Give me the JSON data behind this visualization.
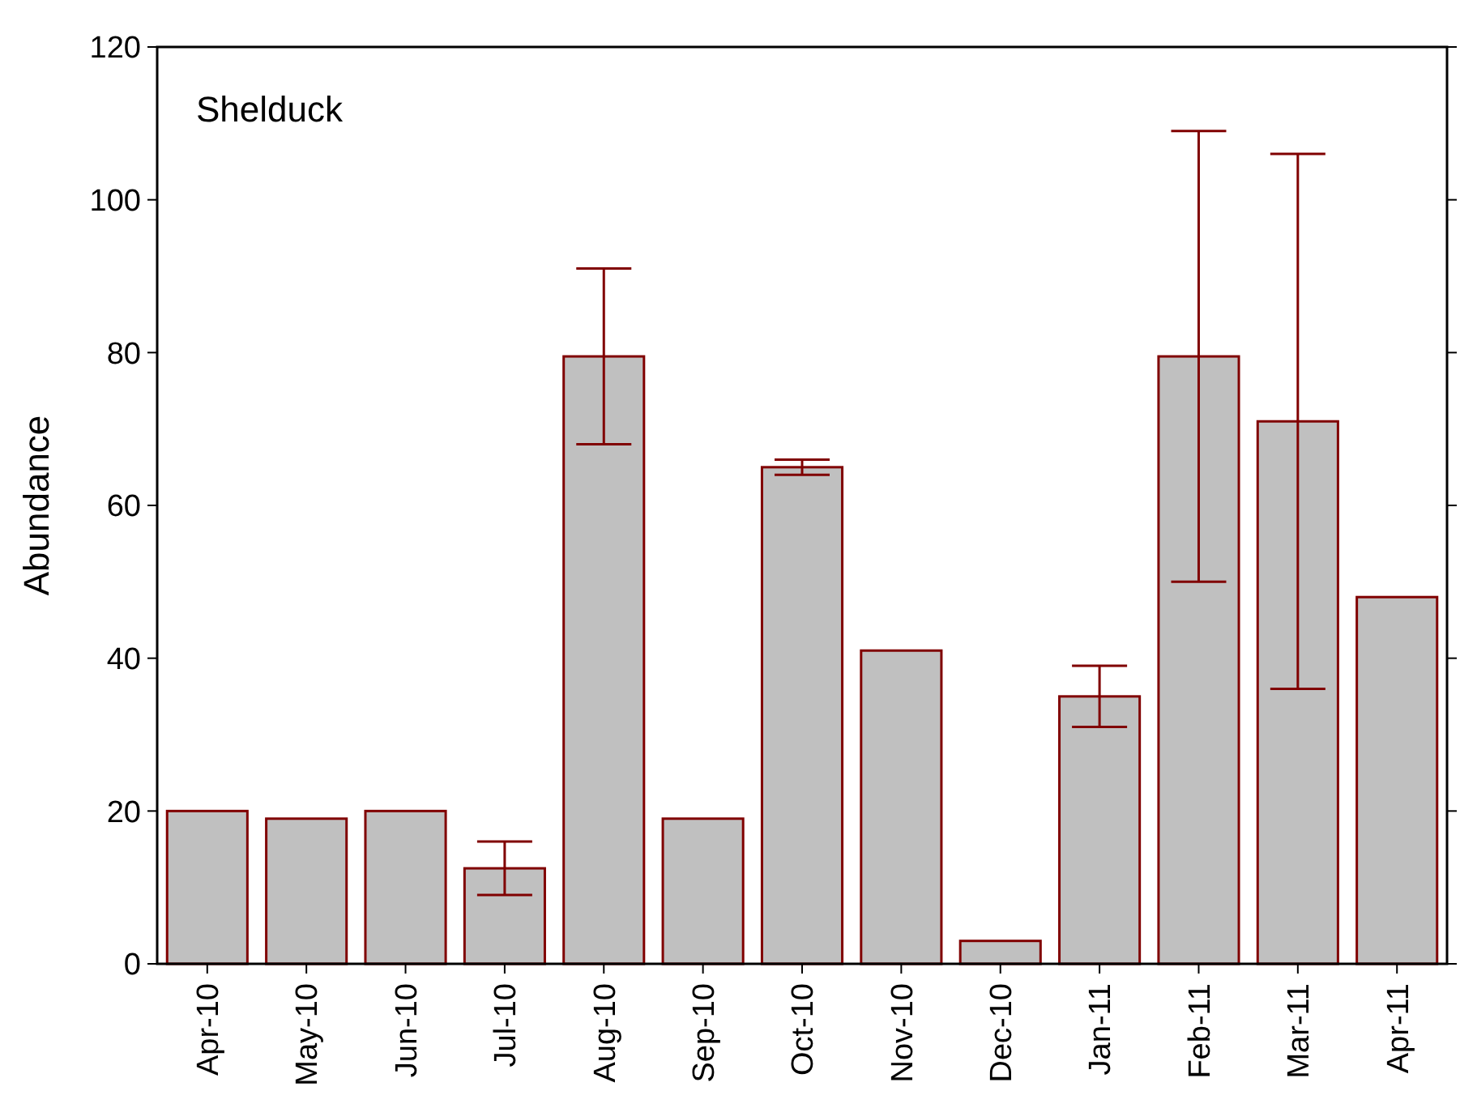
{
  "chart_data": {
    "type": "bar",
    "ylabel": "Abundance",
    "annotations": [
      "Shelduck"
    ],
    "categories": [
      "Apr-10",
      "May-10",
      "Jun-10",
      "Jul-10",
      "Aug-10",
      "Sep-10",
      "Oct-10",
      "Nov-10",
      "Dec-10",
      "Jan-11",
      "Feb-11",
      "Mar-11",
      "Apr-11"
    ],
    "series": [
      {
        "color": "#c0c0c0",
        "values": [
          20,
          19,
          20,
          12.5,
          79.5,
          19,
          65,
          41,
          3,
          35,
          79.5,
          71,
          48
        ],
        "errors": [
          null,
          null,
          null,
          [
            9,
            16
          ],
          [
            68,
            91
          ],
          null,
          [
            64,
            66
          ],
          null,
          null,
          [
            31,
            39
          ],
          [
            50,
            109
          ],
          [
            36,
            106
          ],
          null
        ]
      }
    ],
    "ylim": [
      0,
      120
    ],
    "yticks": [
      0,
      20,
      40,
      60,
      80,
      100,
      120
    ],
    "grid": false
  }
}
